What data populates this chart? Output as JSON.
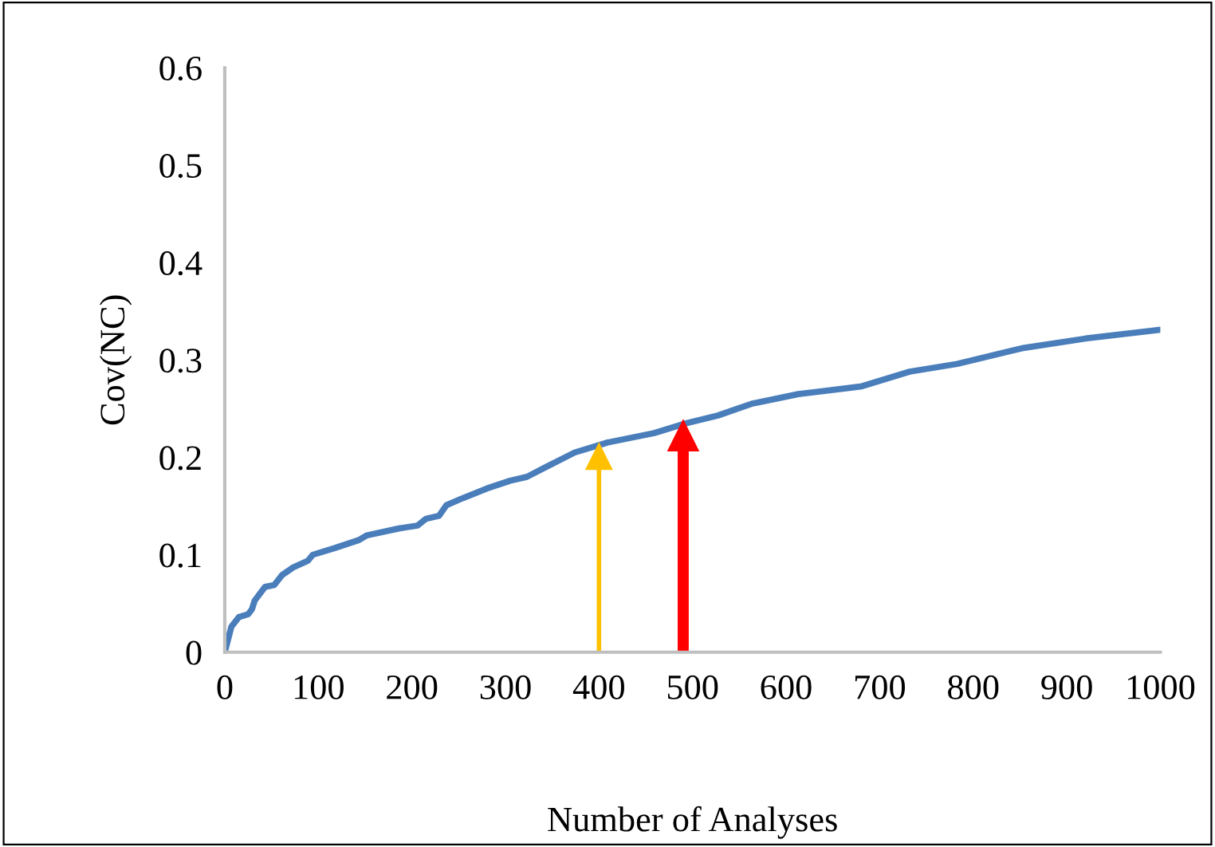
{
  "chart_data": {
    "type": "line",
    "xlabel": "Number of Analyses",
    "ylabel": "Cov(NC)",
    "xlim": [
      0,
      1000
    ],
    "xticks": [
      0,
      100,
      200,
      300,
      400,
      500,
      600,
      700,
      800,
      900,
      1000
    ],
    "ylim": [
      0,
      0.6
    ],
    "yticks": [
      0,
      0.1,
      0.2,
      0.3,
      0.4,
      0.5,
      0.6
    ],
    "grid": false,
    "legend": false,
    "marker": "none",
    "line_style": "solid",
    "series": [
      {
        "color": "#4a7ebb",
        "x": [
          0,
          7,
          15,
          25,
          29,
          32,
          43,
          53,
          61,
          73,
          89,
          94,
          118,
          143,
          152,
          186,
          206,
          215,
          229,
          237,
          254,
          280,
          305,
          323,
          343,
          374,
          408,
          459,
          493,
          527,
          563,
          613,
          664,
          681,
          732,
          783,
          852,
          920,
          1000
        ],
        "values": [
          0,
          0.026,
          0.036,
          0.039,
          0.044,
          0.053,
          0.067,
          0.069,
          0.079,
          0.087,
          0.094,
          0.1,
          0.107,
          0.115,
          0.12,
          0.127,
          0.13,
          0.137,
          0.14,
          0.151,
          0.158,
          0.168,
          0.176,
          0.18,
          0.19,
          0.205,
          0.215,
          0.225,
          0.235,
          0.243,
          0.255,
          0.265,
          0.271,
          0.273,
          0.288,
          0.296,
          0.312,
          0.322,
          0.331
        ]
      }
    ],
    "ref_lines": [
      {
        "axis": "x",
        "value": 400,
        "color": "#ffc000"
      },
      {
        "axis": "x",
        "value": 490,
        "color": "#ff0000"
      }
    ]
  }
}
